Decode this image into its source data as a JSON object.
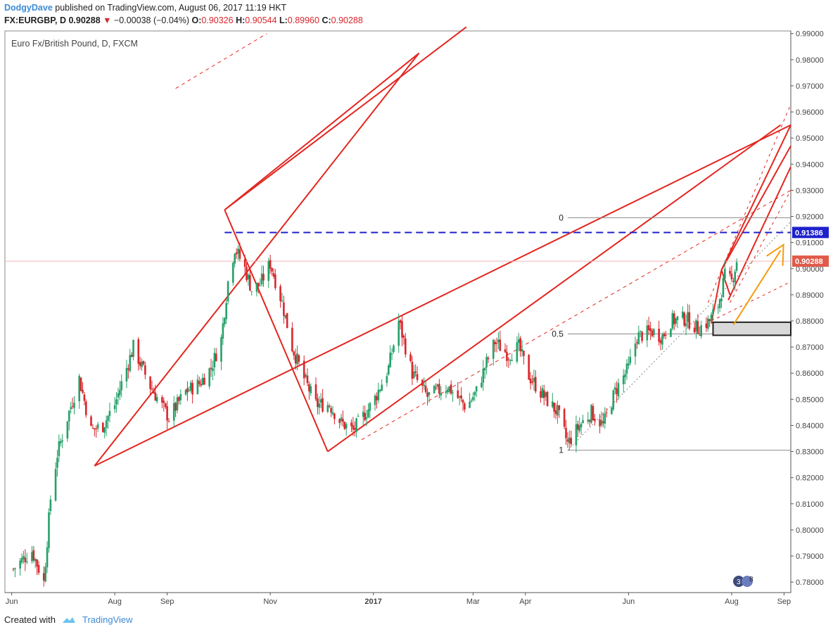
{
  "header": {
    "author": "DodgyDave",
    "published_text": " published on TradingView.com, August 06, 2017 11:19 HKT",
    "symbol": "FX:EURGBP, D",
    "price": "0.90288",
    "change": "−0.00038 (−0.04%)",
    "o_label": "O:",
    "o_value": "0.90326",
    "h_label": "H:",
    "h_value": "0.90544",
    "l_label": "L:",
    "l_value": "0.89960",
    "c_label": "C:",
    "c_value": "0.90288"
  },
  "chart_title": "Euro Fx/British Pound, D, FXCM",
  "footer": {
    "created_with": "Created with",
    "brand": "TradingView"
  },
  "colors": {
    "red": "#e3261f",
    "blue": "#1e22cc",
    "orange": "#f59c0d",
    "candle_up": "#26a069",
    "candle_down": "#d8262c",
    "axis": "#555555"
  },
  "chart_data": {
    "type": "candlestick",
    "title": "Euro Fx/British Pound, D, FXCM",
    "ylim": [
      0.776,
      0.991
    ],
    "x_range": [
      "2016-05-28",
      "2017-09-05"
    ],
    "y_ticks": [
      "0.99000",
      "0.98000",
      "0.97000",
      "0.96000",
      "0.95000",
      "0.94000",
      "0.93000",
      "0.92000",
      "0.91000",
      "0.90000",
      "0.89000",
      "0.88000",
      "0.87000",
      "0.86000",
      "0.85000",
      "0.84000",
      "0.83000",
      "0.82000",
      "0.81000",
      "0.80000",
      "0.79000",
      "0.78000"
    ],
    "x_ticks": [
      {
        "label": "Jun",
        "date": "2016-06-01"
      },
      {
        "label": "Aug",
        "date": "2016-08-01"
      },
      {
        "label": "Sep",
        "date": "2016-09-01"
      },
      {
        "label": "Nov",
        "date": "2016-11-01"
      },
      {
        "label": "2017",
        "date": "2017-01-01",
        "bold": true
      },
      {
        "label": "Mar",
        "date": "2017-03-01"
      },
      {
        "label": "Apr",
        "date": "2017-04-01"
      },
      {
        "label": "Jun",
        "date": "2017-06-01"
      },
      {
        "label": "Aug",
        "date": "2017-08-01"
      },
      {
        "label": "Sep",
        "date": "2017-09-01"
      }
    ],
    "price_path": [
      [
        "2016-06-02",
        0.785
      ],
      [
        "2016-06-08",
        0.789
      ],
      [
        "2016-06-13",
        0.792
      ],
      [
        "2016-06-20",
        0.78
      ],
      [
        "2016-06-24",
        0.812
      ],
      [
        "2016-06-28",
        0.829
      ],
      [
        "2016-07-04",
        0.843
      ],
      [
        "2016-07-11",
        0.858
      ],
      [
        "2016-07-18",
        0.838
      ],
      [
        "2016-07-25",
        0.84
      ],
      [
        "2016-08-01",
        0.848
      ],
      [
        "2016-08-12",
        0.87
      ],
      [
        "2016-08-22",
        0.855
      ],
      [
        "2016-09-02",
        0.843
      ],
      [
        "2016-09-12",
        0.853
      ],
      [
        "2016-09-20",
        0.856
      ],
      [
        "2016-09-27",
        0.862
      ],
      [
        "2016-10-03",
        0.873
      ],
      [
        "2016-10-07",
        0.895
      ],
      [
        "2016-10-11",
        0.908
      ],
      [
        "2016-10-17",
        0.9
      ],
      [
        "2016-10-21",
        0.892
      ],
      [
        "2016-10-26",
        0.894
      ],
      [
        "2016-11-01",
        0.902
      ],
      [
        "2016-11-08",
        0.887
      ],
      [
        "2016-11-14",
        0.87
      ],
      [
        "2016-11-21",
        0.858
      ],
      [
        "2016-11-28",
        0.848
      ],
      [
        "2016-12-06",
        0.848
      ],
      [
        "2016-12-13",
        0.841
      ],
      [
        "2016-12-20",
        0.838
      ],
      [
        "2017-01-01",
        0.849
      ],
      [
        "2017-01-10",
        0.862
      ],
      [
        "2017-01-16",
        0.88
      ],
      [
        "2017-01-24",
        0.86
      ],
      [
        "2017-02-02",
        0.851
      ],
      [
        "2017-02-14",
        0.855
      ],
      [
        "2017-02-25",
        0.847
      ],
      [
        "2017-03-03",
        0.853
      ],
      [
        "2017-03-09",
        0.864
      ],
      [
        "2017-03-14",
        0.872
      ],
      [
        "2017-03-22",
        0.867
      ],
      [
        "2017-03-28",
        0.87
      ],
      [
        "2017-04-03",
        0.859
      ],
      [
        "2017-04-12",
        0.851
      ],
      [
        "2017-04-20",
        0.845
      ],
      [
        "2017-04-26",
        0.833
      ],
      [
        "2017-05-03",
        0.84
      ],
      [
        "2017-05-10",
        0.845
      ],
      [
        "2017-05-17",
        0.84
      ],
      [
        "2017-05-24",
        0.853
      ],
      [
        "2017-06-01",
        0.862
      ],
      [
        "2017-06-06",
        0.874
      ],
      [
        "2017-06-15",
        0.876
      ],
      [
        "2017-06-21",
        0.874
      ],
      [
        "2017-06-26",
        0.88
      ],
      [
        "2017-07-05",
        0.881
      ],
      [
        "2017-07-12",
        0.877
      ],
      [
        "2017-07-19",
        0.88
      ],
      [
        "2017-07-24",
        0.886
      ],
      [
        "2017-07-28",
        0.897
      ],
      [
        "2017-08-01",
        0.895
      ],
      [
        "2017-08-04",
        0.903
      ]
    ],
    "fib_levels": [
      {
        "label": "0",
        "value": 0.9195
      },
      {
        "label": "0.5",
        "value": 0.875
      },
      {
        "label": "1",
        "value": 0.8305
      }
    ],
    "horizontal_level": {
      "value": 0.91386,
      "label": "0.91386",
      "color": "#1e22cc",
      "style": "dashed"
    },
    "last_price": {
      "value": 0.90288,
      "label": "0.90288"
    },
    "support_zone": {
      "from": 0.8745,
      "to": 0.8795
    },
    "annotations": [
      "pitchfork",
      "pitchfork",
      "fib-retracement",
      "projection-arrow"
    ]
  }
}
